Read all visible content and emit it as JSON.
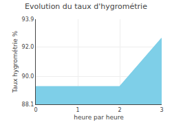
{
  "chart_data": {
    "type": "area",
    "title": "Evolution du taux d'hygrométrie",
    "xlabel": "heure par heure",
    "ylabel": "Taux hygrométrie %",
    "x": [
      0,
      1,
      2,
      3
    ],
    "values": [
      89.3,
      89.3,
      89.3,
      92.6
    ],
    "color": "#7ECFE8",
    "xlim": [
      0,
      3
    ],
    "ylim": [
      88.1,
      93.9
    ],
    "xticks": [
      0,
      1,
      2,
      3
    ],
    "yticks": [
      88.1,
      {
        "value": 90,
        "label": "90.0"
      },
      {
        "value": 92,
        "label": "92.0"
      },
      93.9
    ],
    "grid": true
  }
}
